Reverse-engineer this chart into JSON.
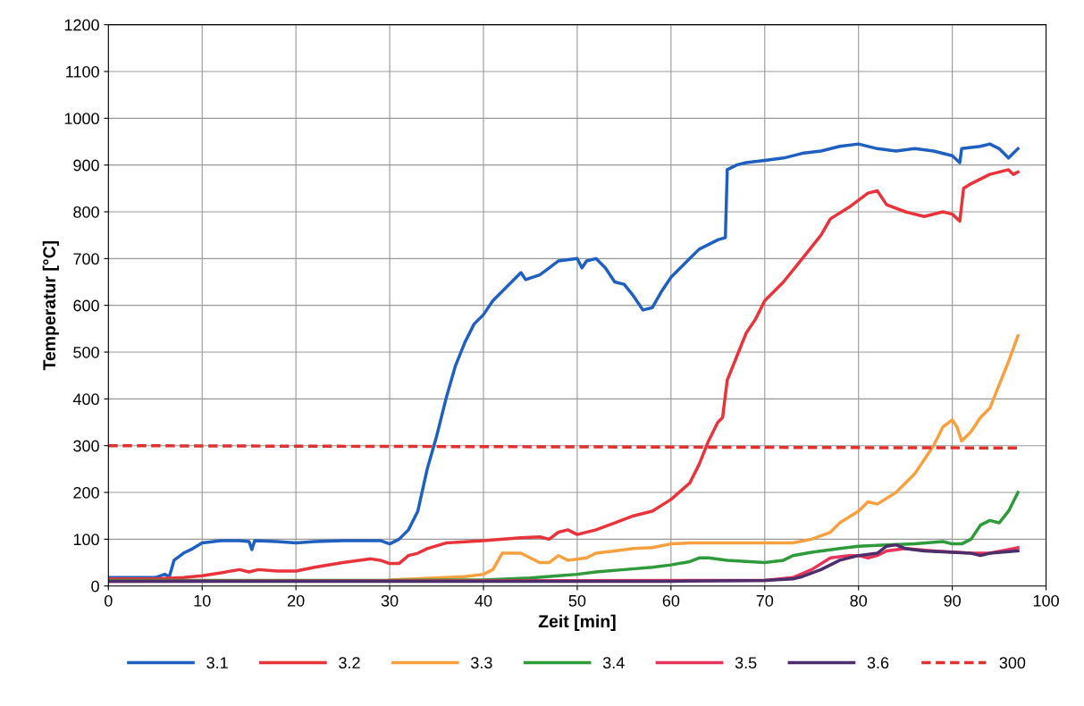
{
  "chart_data": {
    "type": "line",
    "xlabel": "Zeit [min]",
    "ylabel": "Temperatur [°C]",
    "xlim": [
      0,
      100
    ],
    "xticks": [
      0,
      10,
      20,
      30,
      40,
      50,
      60,
      70,
      80,
      90,
      100
    ],
    "ylim": [
      0,
      1200
    ],
    "yticks": [
      0,
      100,
      200,
      300,
      400,
      500,
      600,
      700,
      800,
      900,
      1000,
      1100,
      1200
    ],
    "grid": true,
    "legend": "bottom",
    "marker": "none",
    "series": [
      {
        "name": "3.1",
        "color": "#1f5fbf",
        "x": [
          0,
          5,
          6,
          6.5,
          7,
          8,
          9,
          10,
          12,
          14,
          15,
          15.3,
          15.6,
          18,
          20,
          22,
          25,
          29,
          30,
          31,
          32,
          33,
          34,
          35,
          36,
          37,
          38,
          39,
          40,
          41,
          42,
          43,
          44,
          44.5,
          46,
          47,
          48,
          50,
          50.5,
          51,
          52,
          53,
          54,
          55,
          56,
          57,
          58,
          59,
          60,
          61,
          62,
          63,
          64,
          65,
          65.8,
          66,
          67,
          68,
          70,
          72,
          74,
          76,
          78,
          80,
          82,
          84,
          86,
          88,
          90,
          90.8,
          91,
          93,
          94,
          95,
          96,
          97
        ],
        "values": [
          18,
          18,
          25,
          20,
          55,
          70,
          80,
          92,
          97,
          97,
          95,
          78,
          97,
          95,
          92,
          95,
          97,
          97,
          90,
          100,
          120,
          160,
          250,
          320,
          400,
          470,
          520,
          560,
          580,
          610,
          630,
          650,
          670,
          655,
          665,
          680,
          695,
          700,
          680,
          695,
          700,
          680,
          650,
          645,
          620,
          590,
          595,
          630,
          660,
          680,
          700,
          720,
          730,
          740,
          745,
          890,
          900,
          905,
          910,
          915,
          925,
          930,
          940,
          945,
          935,
          930,
          935,
          930,
          920,
          905,
          935,
          940,
          945,
          935,
          915,
          935
        ]
      },
      {
        "name": "3.2",
        "color": "#e8333a",
        "x": [
          0,
          5,
          8,
          10,
          12,
          14,
          15,
          16,
          18,
          20,
          22,
          25,
          28,
          29,
          30,
          31,
          32,
          33,
          34,
          36,
          40,
          44,
          46,
          47,
          48,
          49,
          50,
          52,
          54,
          56,
          58,
          60,
          62,
          63,
          64,
          65,
          65.5,
          66,
          67,
          68,
          69,
          70,
          72,
          74,
          76,
          77,
          79,
          81,
          82,
          83,
          85,
          87,
          89,
          90,
          90.8,
          91.2,
          92,
          94,
          96,
          96.5,
          97
        ],
        "values": [
          15,
          15,
          18,
          22,
          28,
          35,
          30,
          35,
          32,
          32,
          40,
          50,
          58,
          55,
          48,
          48,
          65,
          70,
          80,
          92,
          97,
          103,
          105,
          100,
          115,
          120,
          110,
          120,
          135,
          150,
          160,
          185,
          220,
          260,
          310,
          350,
          360,
          440,
          490,
          540,
          570,
          610,
          650,
          700,
          750,
          785,
          810,
          840,
          845,
          815,
          800,
          790,
          800,
          795,
          780,
          850,
          860,
          880,
          890,
          880,
          885
        ]
      },
      {
        "name": "3.3",
        "color": "#f7a040",
        "x": [
          30,
          38,
          40,
          41,
          42,
          44,
          45,
          46,
          47,
          48,
          49,
          51,
          52,
          54,
          56,
          58,
          60,
          62,
          65,
          70,
          73,
          75,
          77,
          78,
          80,
          81,
          82,
          84,
          86,
          88,
          89,
          90,
          90.5,
          91,
          92,
          93,
          94,
          95,
          96,
          97
        ],
        "values": [
          13,
          20,
          25,
          35,
          70,
          70,
          60,
          50,
          50,
          65,
          55,
          60,
          70,
          75,
          80,
          82,
          90,
          92,
          92,
          92,
          92,
          100,
          115,
          135,
          160,
          180,
          175,
          200,
          240,
          300,
          340,
          355,
          340,
          310,
          330,
          360,
          380,
          430,
          480,
          535
        ]
      },
      {
        "name": "3.4",
        "color": "#2e9a3a",
        "x": [
          0,
          30,
          40,
          45,
          48,
          50,
          52,
          55,
          58,
          60,
          62,
          63,
          64,
          66,
          70,
          72,
          73,
          75,
          78,
          80,
          83,
          86,
          89,
          90,
          91,
          92,
          93,
          94,
          95,
          96,
          97
        ],
        "values": [
          12,
          12,
          13,
          17,
          22,
          25,
          30,
          35,
          40,
          45,
          52,
          60,
          60,
          55,
          50,
          55,
          65,
          72,
          80,
          85,
          88,
          90,
          95,
          90,
          90,
          100,
          130,
          140,
          135,
          160,
          200
        ]
      },
      {
        "name": "3.5",
        "color": "#e8335a",
        "x": [
          0,
          70,
          73,
          75,
          77,
          79,
          80,
          81,
          82,
          83,
          85,
          88,
          92,
          94,
          96,
          97
        ],
        "values": [
          10,
          12,
          18,
          35,
          60,
          65,
          65,
          60,
          65,
          75,
          80,
          75,
          70,
          70,
          78,
          82
        ]
      },
      {
        "name": "3.6",
        "color": "#4b2e6b",
        "x": [
          0,
          40,
          50,
          60,
          70,
          73,
          74,
          76,
          78,
          80,
          82,
          83,
          84,
          85,
          87,
          92,
          93,
          94,
          97
        ],
        "values": [
          10,
          10,
          10,
          10,
          12,
          15,
          20,
          35,
          55,
          65,
          70,
          85,
          88,
          80,
          75,
          70,
          65,
          70,
          75
        ]
      },
      {
        "name": "300",
        "color": "#e03030",
        "line_style": "dashed",
        "x": [
          0,
          97
        ],
        "values": [
          300,
          295
        ]
      }
    ]
  }
}
